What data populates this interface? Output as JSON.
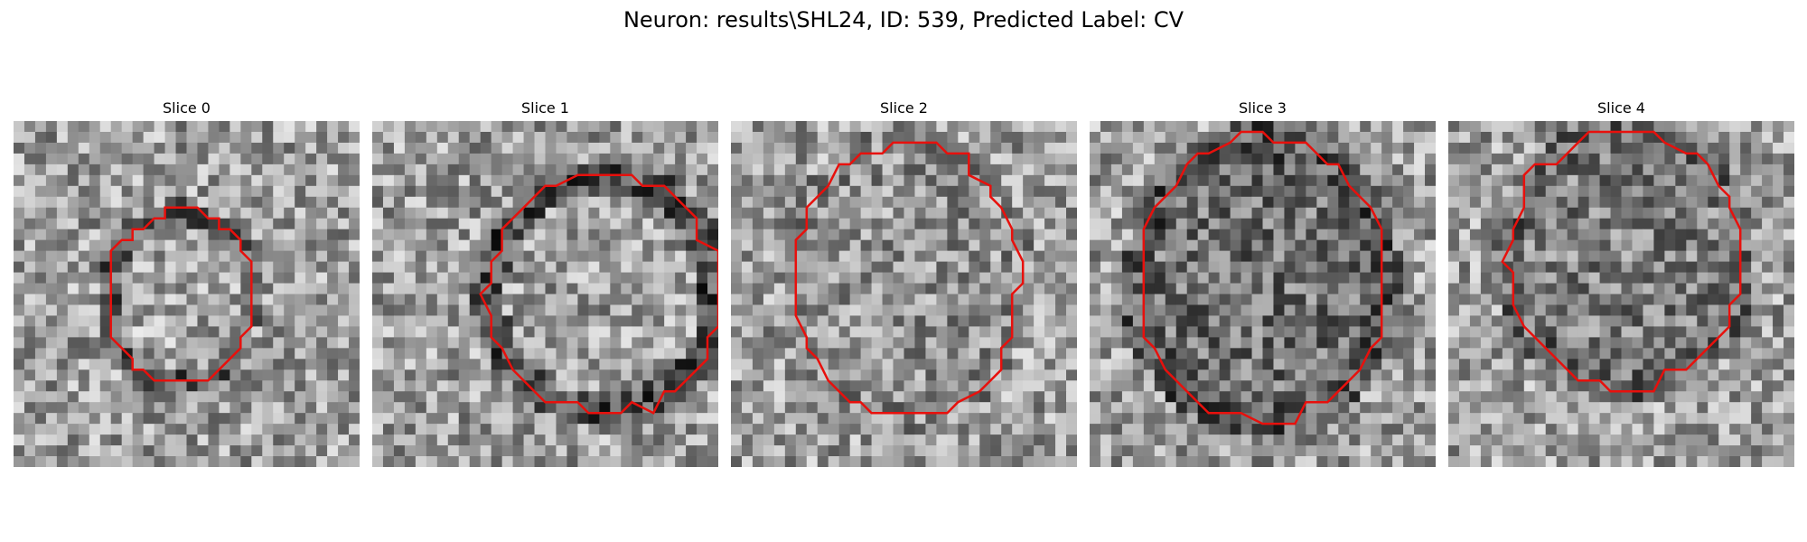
{
  "figure": {
    "title": "Neuron: results\\SHL24, ID: 539, Predicted Label: CV"
  },
  "slices": [
    {
      "title": "Slice 0",
      "contour_color": "#e8100c"
    },
    {
      "title": "Slice 1",
      "contour_color": "#e8100c"
    },
    {
      "title": "Slice 2",
      "contour_color": "#e8100c"
    },
    {
      "title": "Slice 3",
      "contour_color": "#e8100c"
    },
    {
      "title": "Slice 4",
      "contour_color": "#e8100c"
    }
  ]
}
